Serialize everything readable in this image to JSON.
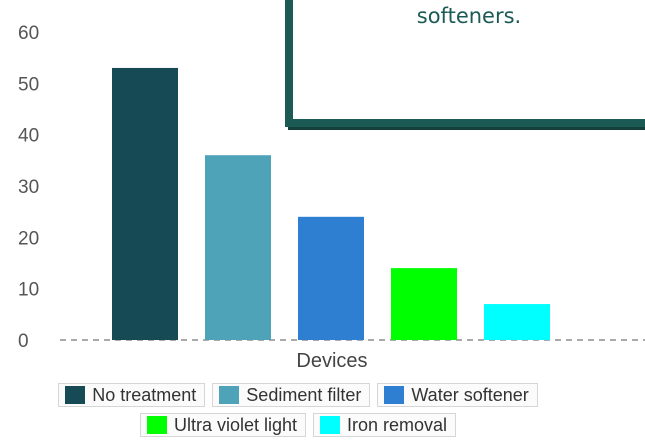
{
  "chart_data": {
    "type": "bar",
    "xlabel": "Devices",
    "ylabel": "",
    "ylim": [
      0,
      60
    ],
    "yticks": [
      0,
      10,
      20,
      30,
      40,
      50,
      60
    ],
    "grid": false,
    "legend_position": "bottom",
    "series": [
      {
        "name": "No treatment",
        "value": 53,
        "color": "#164b55"
      },
      {
        "name": "Sediment filter",
        "value": 36,
        "color": "#4ea3b8"
      },
      {
        "name": "Water softener",
        "value": 24,
        "color": "#2e7fd1"
      },
      {
        "name": "Ultra violet light",
        "value": 14,
        "color": "#00ff00"
      },
      {
        "name": "Iron removal",
        "value": 7,
        "color": "#00ffff"
      }
    ]
  },
  "callout": {
    "text": "sediment filters and\nsofteners."
  }
}
